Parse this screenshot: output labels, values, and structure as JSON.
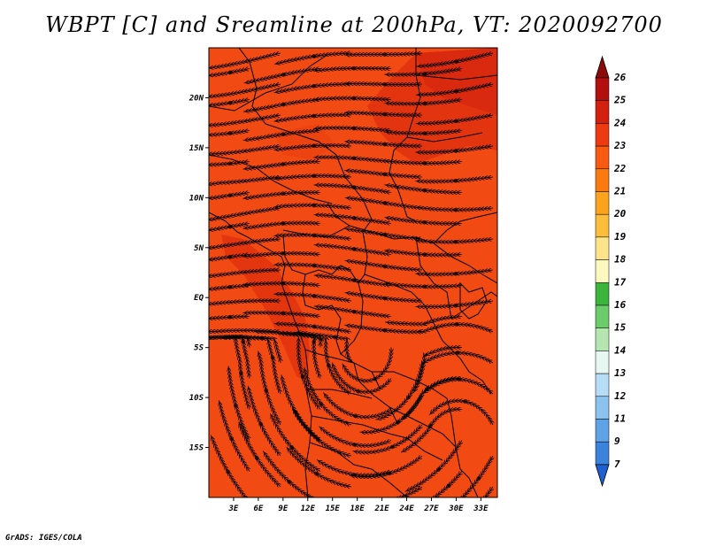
{
  "title": "WBPT [C] and Sreamline at 200hPa, VT: 2020092700",
  "credit": "GrADS: IGES/COLA",
  "map": {
    "lat_ticks": [
      "20N",
      "15N",
      "10N",
      "5N",
      "EQ",
      "5S",
      "10S",
      "15S"
    ],
    "lon_ticks": [
      "3E",
      "6E",
      "9E",
      "12E",
      "15E",
      "18E",
      "21E",
      "24E",
      "27E",
      "30E",
      "33E"
    ],
    "lon_range": [
      0,
      35
    ],
    "lat_range": [
      -20,
      25
    ],
    "field": "WBPT [C]",
    "background_color": "#f24a13",
    "warm_patch_color": "#e0330f"
  },
  "colorbar": {
    "labels": [
      "26",
      "25",
      "24",
      "23",
      "22",
      "21",
      "20",
      "19",
      "18",
      "17",
      "16",
      "15",
      "14",
      "13",
      "12",
      "11",
      "9",
      "7"
    ],
    "colors": [
      "#b30f0f",
      "#d4210f",
      "#ee3a10",
      "#f85a12",
      "#fb7a0f",
      "#fca31e",
      "#fcbd3a",
      "#fde48a",
      "#fdf8c0",
      "#3bb53c",
      "#6ccb6a",
      "#b5e6b0",
      "#e6f7f2",
      "#b6ddf5",
      "#8cc2ee",
      "#5fa2e6",
      "#3c83dc",
      "#2565cf"
    ],
    "top_arrow_color": "#8b0b0b",
    "bottom_arrow_color": "#1f5fd0"
  }
}
